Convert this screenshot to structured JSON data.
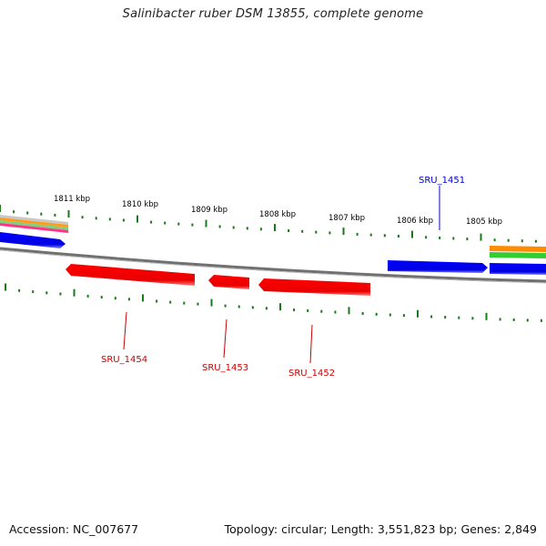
{
  "title": "Salinibacter ruber DSM 13855, complete genome",
  "footer": {
    "accession": "Accession: NC_007677",
    "summary": "Topology: circular; Length: 3,551,823 bp; Genes: 2,849"
  },
  "scale_labels": [
    "1811 kbp",
    "1810 kbp",
    "1809 kbp",
    "1808 kbp",
    "1807 kbp",
    "1806 kbp",
    "1805 kbp"
  ],
  "genes": [
    {
      "name": "SRU_1451",
      "strand": "+",
      "color": "#0000cc"
    },
    {
      "name": "SRU_1452",
      "strand": "-",
      "color": "#cc0000"
    },
    {
      "name": "SRU_1453",
      "strand": "-",
      "color": "#cc0000"
    },
    {
      "name": "SRU_1454",
      "strand": "-",
      "color": "#cc0000"
    }
  ],
  "colors": {
    "forward_gene": "#0000ff",
    "reverse_gene": "#ff0000",
    "backbone": "#808080",
    "tick": "#1a7a1a",
    "feature_orange": "#ff8c00",
    "feature_green": "#33cc33",
    "feature_gray": "#b0b0b0",
    "feature_pink": "#ff3388"
  }
}
